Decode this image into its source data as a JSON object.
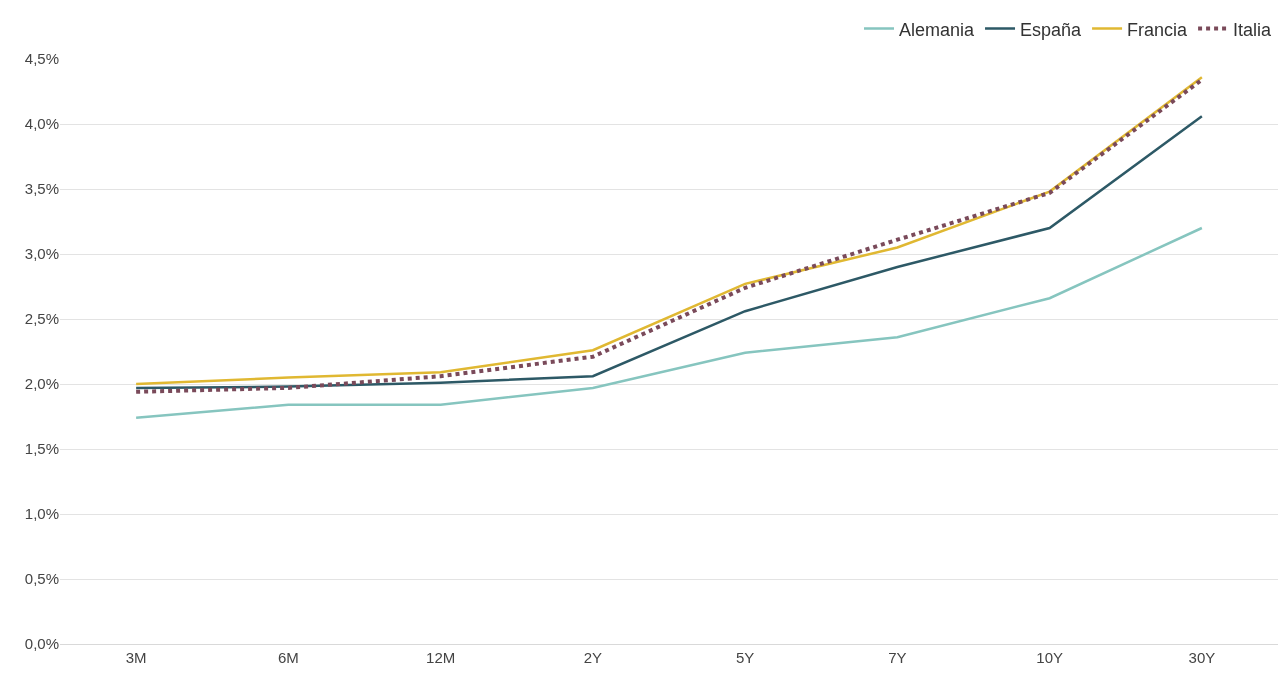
{
  "chart_data": {
    "type": "line",
    "categories": [
      "3M",
      "6M",
      "12M",
      "2Y",
      "5Y",
      "7Y",
      "10Y",
      "30Y"
    ],
    "series": [
      {
        "name": "Alemania",
        "color": "#86c5bf",
        "values": [
          1.74,
          1.84,
          1.84,
          1.97,
          2.24,
          2.36,
          2.66,
          3.2
        ]
      },
      {
        "name": "España",
        "color": "#2d5966",
        "values": [
          1.97,
          1.98,
          2.01,
          2.06,
          2.56,
          2.9,
          3.2,
          4.06
        ]
      },
      {
        "name": "Francia",
        "color": "#e0b832",
        "values": [
          2.0,
          2.05,
          2.09,
          2.26,
          2.77,
          3.05,
          3.48,
          4.36
        ]
      },
      {
        "name": "Italia",
        "color": "#7a4a5a",
        "line_style": "dotted",
        "values": [
          1.94,
          1.97,
          2.06,
          2.21,
          2.74,
          3.11,
          3.47,
          4.34
        ]
      }
    ],
    "ylim": [
      0,
      4.5
    ],
    "yticks": [
      {
        "value": 0,
        "label": "0,0%"
      },
      {
        "value": 0.5,
        "label": "0,5%"
      },
      {
        "value": 1,
        "label": "1,0%"
      },
      {
        "value": 1.5,
        "label": "1,5%"
      },
      {
        "value": 2,
        "label": "2,0%"
      },
      {
        "value": 2.5,
        "label": "2,5%"
      },
      {
        "value": 3,
        "label": "3,0%"
      },
      {
        "value": 3.5,
        "label": "3,5%"
      },
      {
        "value": 4,
        "label": "4,0%"
      },
      {
        "value": 4.5,
        "label": "4,5%"
      }
    ],
    "grid": "y",
    "legend": "top right",
    "line_style": "solid",
    "marker": "none"
  }
}
